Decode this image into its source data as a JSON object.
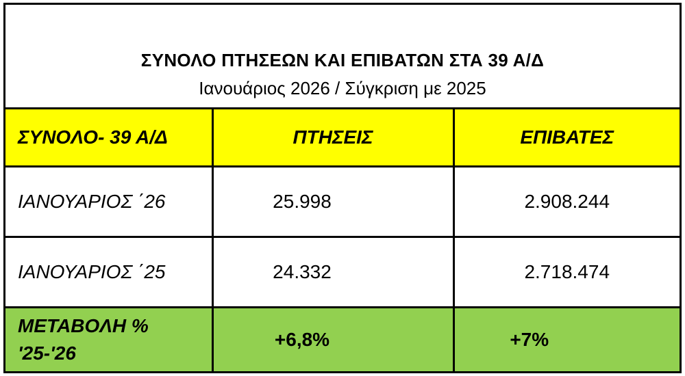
{
  "header": {
    "title": "ΣΥΝΟΛΟ ΠΤΗΣΕΩΝ ΚΑΙ ΕΠΙΒΑΤΩΝ ΣΤΑ 39 Α/Δ",
    "subtitle": "Ιανουάριος 2026 / Σύγκριση με 2025"
  },
  "table": {
    "columns": [
      "ΣΥΝΟΛΟ- 39 Α/Δ",
      "ΠΤΗΣΕΙΣ",
      "ΕΠΙΒΑΤΕΣ"
    ],
    "rows": [
      {
        "label": "ΙΑΝΟΥΑΡΙΟΣ ΄26",
        "flights": "25.998",
        "passengers": "2.908.244"
      },
      {
        "label": "ΙΑΝΟΥΑΡΙΟΣ ΄25",
        "flights": "24.332",
        "passengers": "2.718.474"
      }
    ],
    "change": {
      "label_line1": "ΜΕΤΑΒΟΛΗ %",
      "label_line2": "'25-'26",
      "flights": "+6,8%",
      "passengers": "+7%"
    }
  },
  "colors": {
    "header_bg": "#ffff00",
    "change_bg": "#92d050",
    "border": "#000000"
  }
}
